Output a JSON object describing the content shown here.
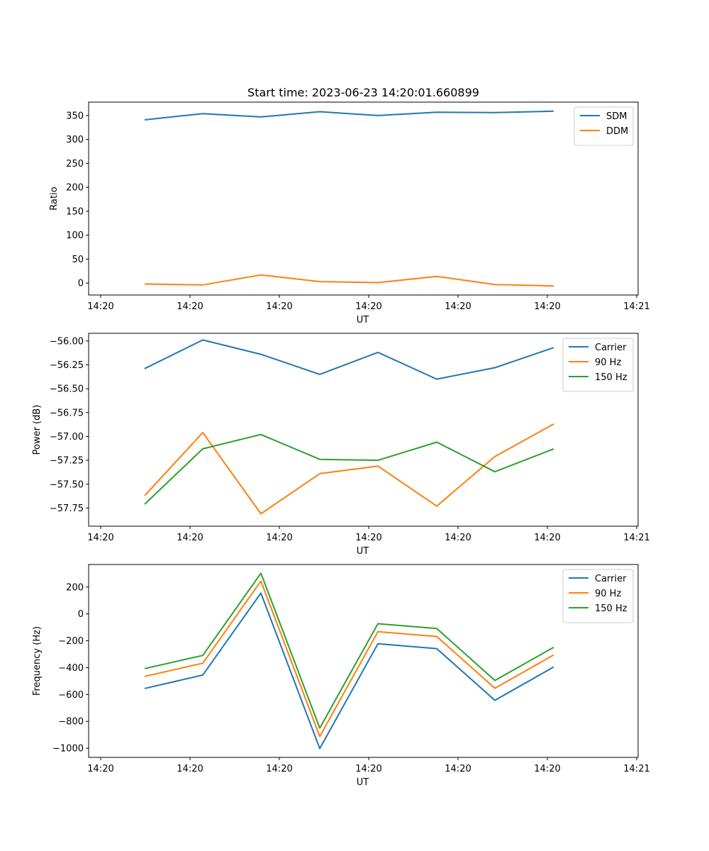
{
  "chart_data": [
    {
      "type": "line",
      "title": "Start time: 2023-06-23 14:20:01.660899",
      "xlabel": "UT",
      "ylabel": "Ratio",
      "x_ticks": [
        "14:20",
        "14:20",
        "14:20",
        "14:20",
        "14:20",
        "14:20",
        "14:21"
      ],
      "y_ticks": [
        0,
        50,
        100,
        150,
        200,
        250,
        300,
        350
      ],
      "ylim": [
        -25,
        378
      ],
      "legend": "top-right",
      "series": [
        {
          "name": "SDM",
          "color": "#1f77b4",
          "values": [
            341,
            354,
            347,
            358,
            350,
            357,
            356,
            359
          ]
        },
        {
          "name": "DDM",
          "color": "#ff7f0e",
          "values": [
            -2,
            -4,
            17,
            3,
            1,
            14,
            -3,
            -6
          ]
        }
      ]
    },
    {
      "type": "line",
      "title": "",
      "xlabel": "UT",
      "ylabel": "Power (dB)",
      "x_ticks": [
        "14:20",
        "14:20",
        "14:20",
        "14:20",
        "14:20",
        "14:20",
        "14:21"
      ],
      "y_ticks": [
        -57.75,
        -57.5,
        -57.25,
        -57.0,
        -56.75,
        -56.5,
        -56.25,
        -56.0
      ],
      "y_tick_labels": [
        "−57.75",
        "−57.50",
        "−57.25",
        "−57.00",
        "−56.75",
        "−56.50",
        "−56.25",
        "−56.00"
      ],
      "ylim": [
        -57.94,
        -55.92
      ],
      "legend": "top-right",
      "series": [
        {
          "name": "Carrier",
          "color": "#1f77b4",
          "values": [
            -56.29,
            -55.99,
            -56.14,
            -56.35,
            -56.12,
            -56.4,
            -56.28,
            -56.07
          ]
        },
        {
          "name": "90 Hz",
          "color": "#ff7f0e",
          "values": [
            -57.62,
            -56.96,
            -57.81,
            -57.39,
            -57.31,
            -57.73,
            -57.21,
            -56.87
          ]
        },
        {
          "name": "150 Hz",
          "color": "#2ca02c",
          "values": [
            -57.71,
            -57.13,
            -56.98,
            -57.24,
            -57.25,
            -57.06,
            -57.37,
            -57.13
          ]
        }
      ]
    },
    {
      "type": "line",
      "title": "",
      "xlabel": "UT",
      "ylabel": "Frequency (Hz)",
      "x_ticks": [
        "14:20",
        "14:20",
        "14:20",
        "14:20",
        "14:20",
        "14:20",
        "14:21"
      ],
      "y_ticks": [
        -1000,
        -800,
        -600,
        -400,
        -200,
        0,
        200
      ],
      "y_tick_labels": [
        "−1000",
        "−800",
        "−600",
        "−400",
        "−200",
        "0",
        "200"
      ],
      "ylim": [
        -1068,
        368
      ],
      "legend": "top-right",
      "series": [
        {
          "name": "Carrier",
          "color": "#1f77b4",
          "values": [
            -555,
            -455,
            155,
            -1002,
            -222,
            -258,
            -643,
            -395
          ]
        },
        {
          "name": "90 Hz",
          "color": "#ff7f0e",
          "values": [
            -465,
            -367,
            245,
            -912,
            -132,
            -168,
            -553,
            -305
          ]
        },
        {
          "name": "150 Hz",
          "color": "#2ca02c",
          "values": [
            -407,
            -309,
            303,
            -850,
            -73,
            -108,
            -495,
            -248
          ]
        }
      ]
    }
  ]
}
